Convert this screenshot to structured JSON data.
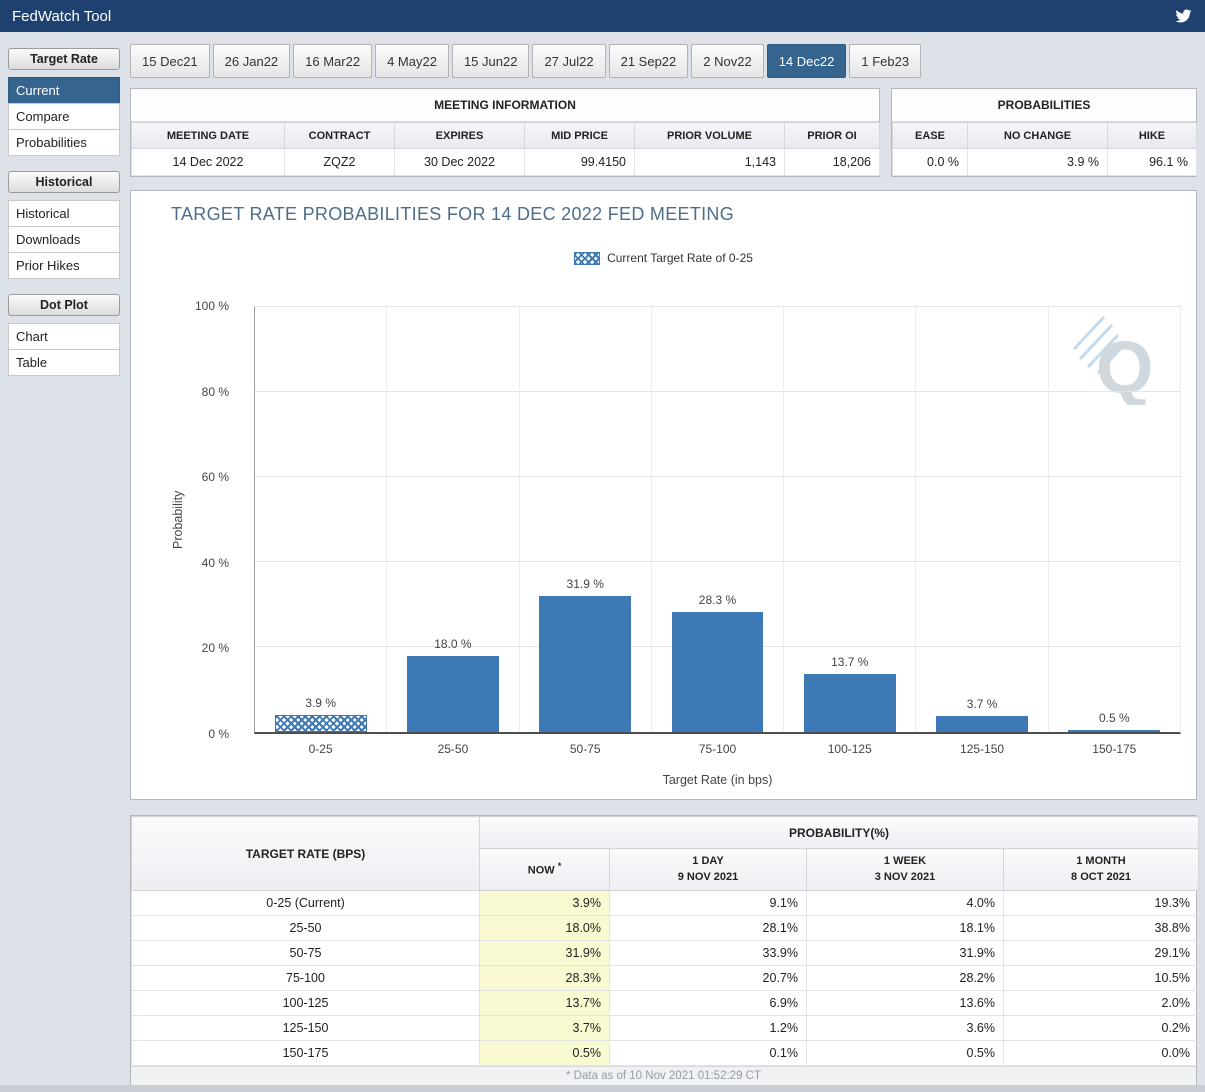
{
  "header": {
    "title": "FedWatch Tool"
  },
  "sidebar": {
    "sections": [
      {
        "header": "Target Rate",
        "items": [
          {
            "label": "Current",
            "selected": true
          },
          {
            "label": "Compare",
            "selected": false
          },
          {
            "label": "Probabilities",
            "selected": false
          }
        ]
      },
      {
        "header": "Historical",
        "items": [
          {
            "label": "Historical",
            "selected": false
          },
          {
            "label": "Downloads",
            "selected": false
          },
          {
            "label": "Prior Hikes",
            "selected": false
          }
        ]
      },
      {
        "header": "Dot Plot",
        "items": [
          {
            "label": "Chart",
            "selected": false
          },
          {
            "label": "Table",
            "selected": false
          }
        ]
      }
    ]
  },
  "tabs": [
    {
      "label": "15 Dec21",
      "selected": false
    },
    {
      "label": "26 Jan22",
      "selected": false
    },
    {
      "label": "16 Mar22",
      "selected": false
    },
    {
      "label": "4 May22",
      "selected": false
    },
    {
      "label": "15 Jun22",
      "selected": false
    },
    {
      "label": "27 Jul22",
      "selected": false
    },
    {
      "label": "21 Sep22",
      "selected": false
    },
    {
      "label": "2 Nov22",
      "selected": false
    },
    {
      "label": "14 Dec22",
      "selected": true
    },
    {
      "label": "1 Feb23",
      "selected": false
    }
  ],
  "meeting_info": {
    "title": "MEETING INFORMATION",
    "columns": [
      "MEETING DATE",
      "CONTRACT",
      "EXPIRES",
      "MID PRICE",
      "PRIOR VOLUME",
      "PRIOR OI"
    ],
    "values": [
      "14 Dec 2022",
      "ZQZ2",
      "30 Dec 2022",
      "99.4150",
      "1,143",
      "18,206"
    ]
  },
  "probabilities_summary": {
    "title": "PROBABILITIES",
    "columns": [
      "EASE",
      "NO CHANGE",
      "HIKE"
    ],
    "values": [
      "0.0 %",
      "3.9 %",
      "96.1 %"
    ]
  },
  "chart_data": {
    "type": "bar",
    "title": "TARGET RATE PROBABILITIES FOR 14 DEC 2022 FED MEETING",
    "legend": "Current Target Rate of 0-25",
    "categories": [
      "0-25",
      "25-50",
      "50-75",
      "75-100",
      "100-125",
      "125-150",
      "150-175"
    ],
    "values": [
      3.9,
      18.0,
      31.9,
      28.3,
      13.7,
      3.7,
      0.5
    ],
    "value_labels": [
      "3.9 %",
      "18.0 %",
      "31.9 %",
      "28.3 %",
      "13.7 %",
      "3.7 %",
      "0.5 %"
    ],
    "xlabel": "Target Rate (in bps)",
    "ylabel": "Probability",
    "ylim": [
      0,
      100
    ],
    "yticks": [
      "100 %",
      "80 %",
      "60 %",
      "40 %",
      "20 %",
      "0 %"
    ],
    "bar_color": "#3d7ab5",
    "hatched_bar_index": 0,
    "grid": true,
    "legend_position": "top-center"
  },
  "probability_table": {
    "corner_header": "TARGET RATE (BPS)",
    "group_header": "PROBABILITY(%)",
    "now_label": "NOW",
    "now_asterisk": "*",
    "periods": [
      {
        "name": "1 DAY",
        "date": "9 NOV 2021"
      },
      {
        "name": "1 WEEK",
        "date": "3 NOV 2021"
      },
      {
        "name": "1 MONTH",
        "date": "8 OCT 2021"
      }
    ],
    "rows": [
      [
        "0-25 (Current)",
        "3.9%",
        "9.1%",
        "4.0%",
        "19.3%"
      ],
      [
        "25-50",
        "18.0%",
        "28.1%",
        "18.1%",
        "38.8%"
      ],
      [
        "50-75",
        "31.9%",
        "33.9%",
        "31.9%",
        "29.1%"
      ],
      [
        "75-100",
        "28.3%",
        "20.7%",
        "28.2%",
        "10.5%"
      ],
      [
        "100-125",
        "13.7%",
        "6.9%",
        "13.6%",
        "2.0%"
      ],
      [
        "125-150",
        "3.7%",
        "1.2%",
        "3.6%",
        "0.2%"
      ],
      [
        "150-175",
        "0.5%",
        "0.1%",
        "0.5%",
        "0.0%"
      ]
    ],
    "footnote": "* Data as of 10 Nov 2021 01:52:29 CT"
  }
}
